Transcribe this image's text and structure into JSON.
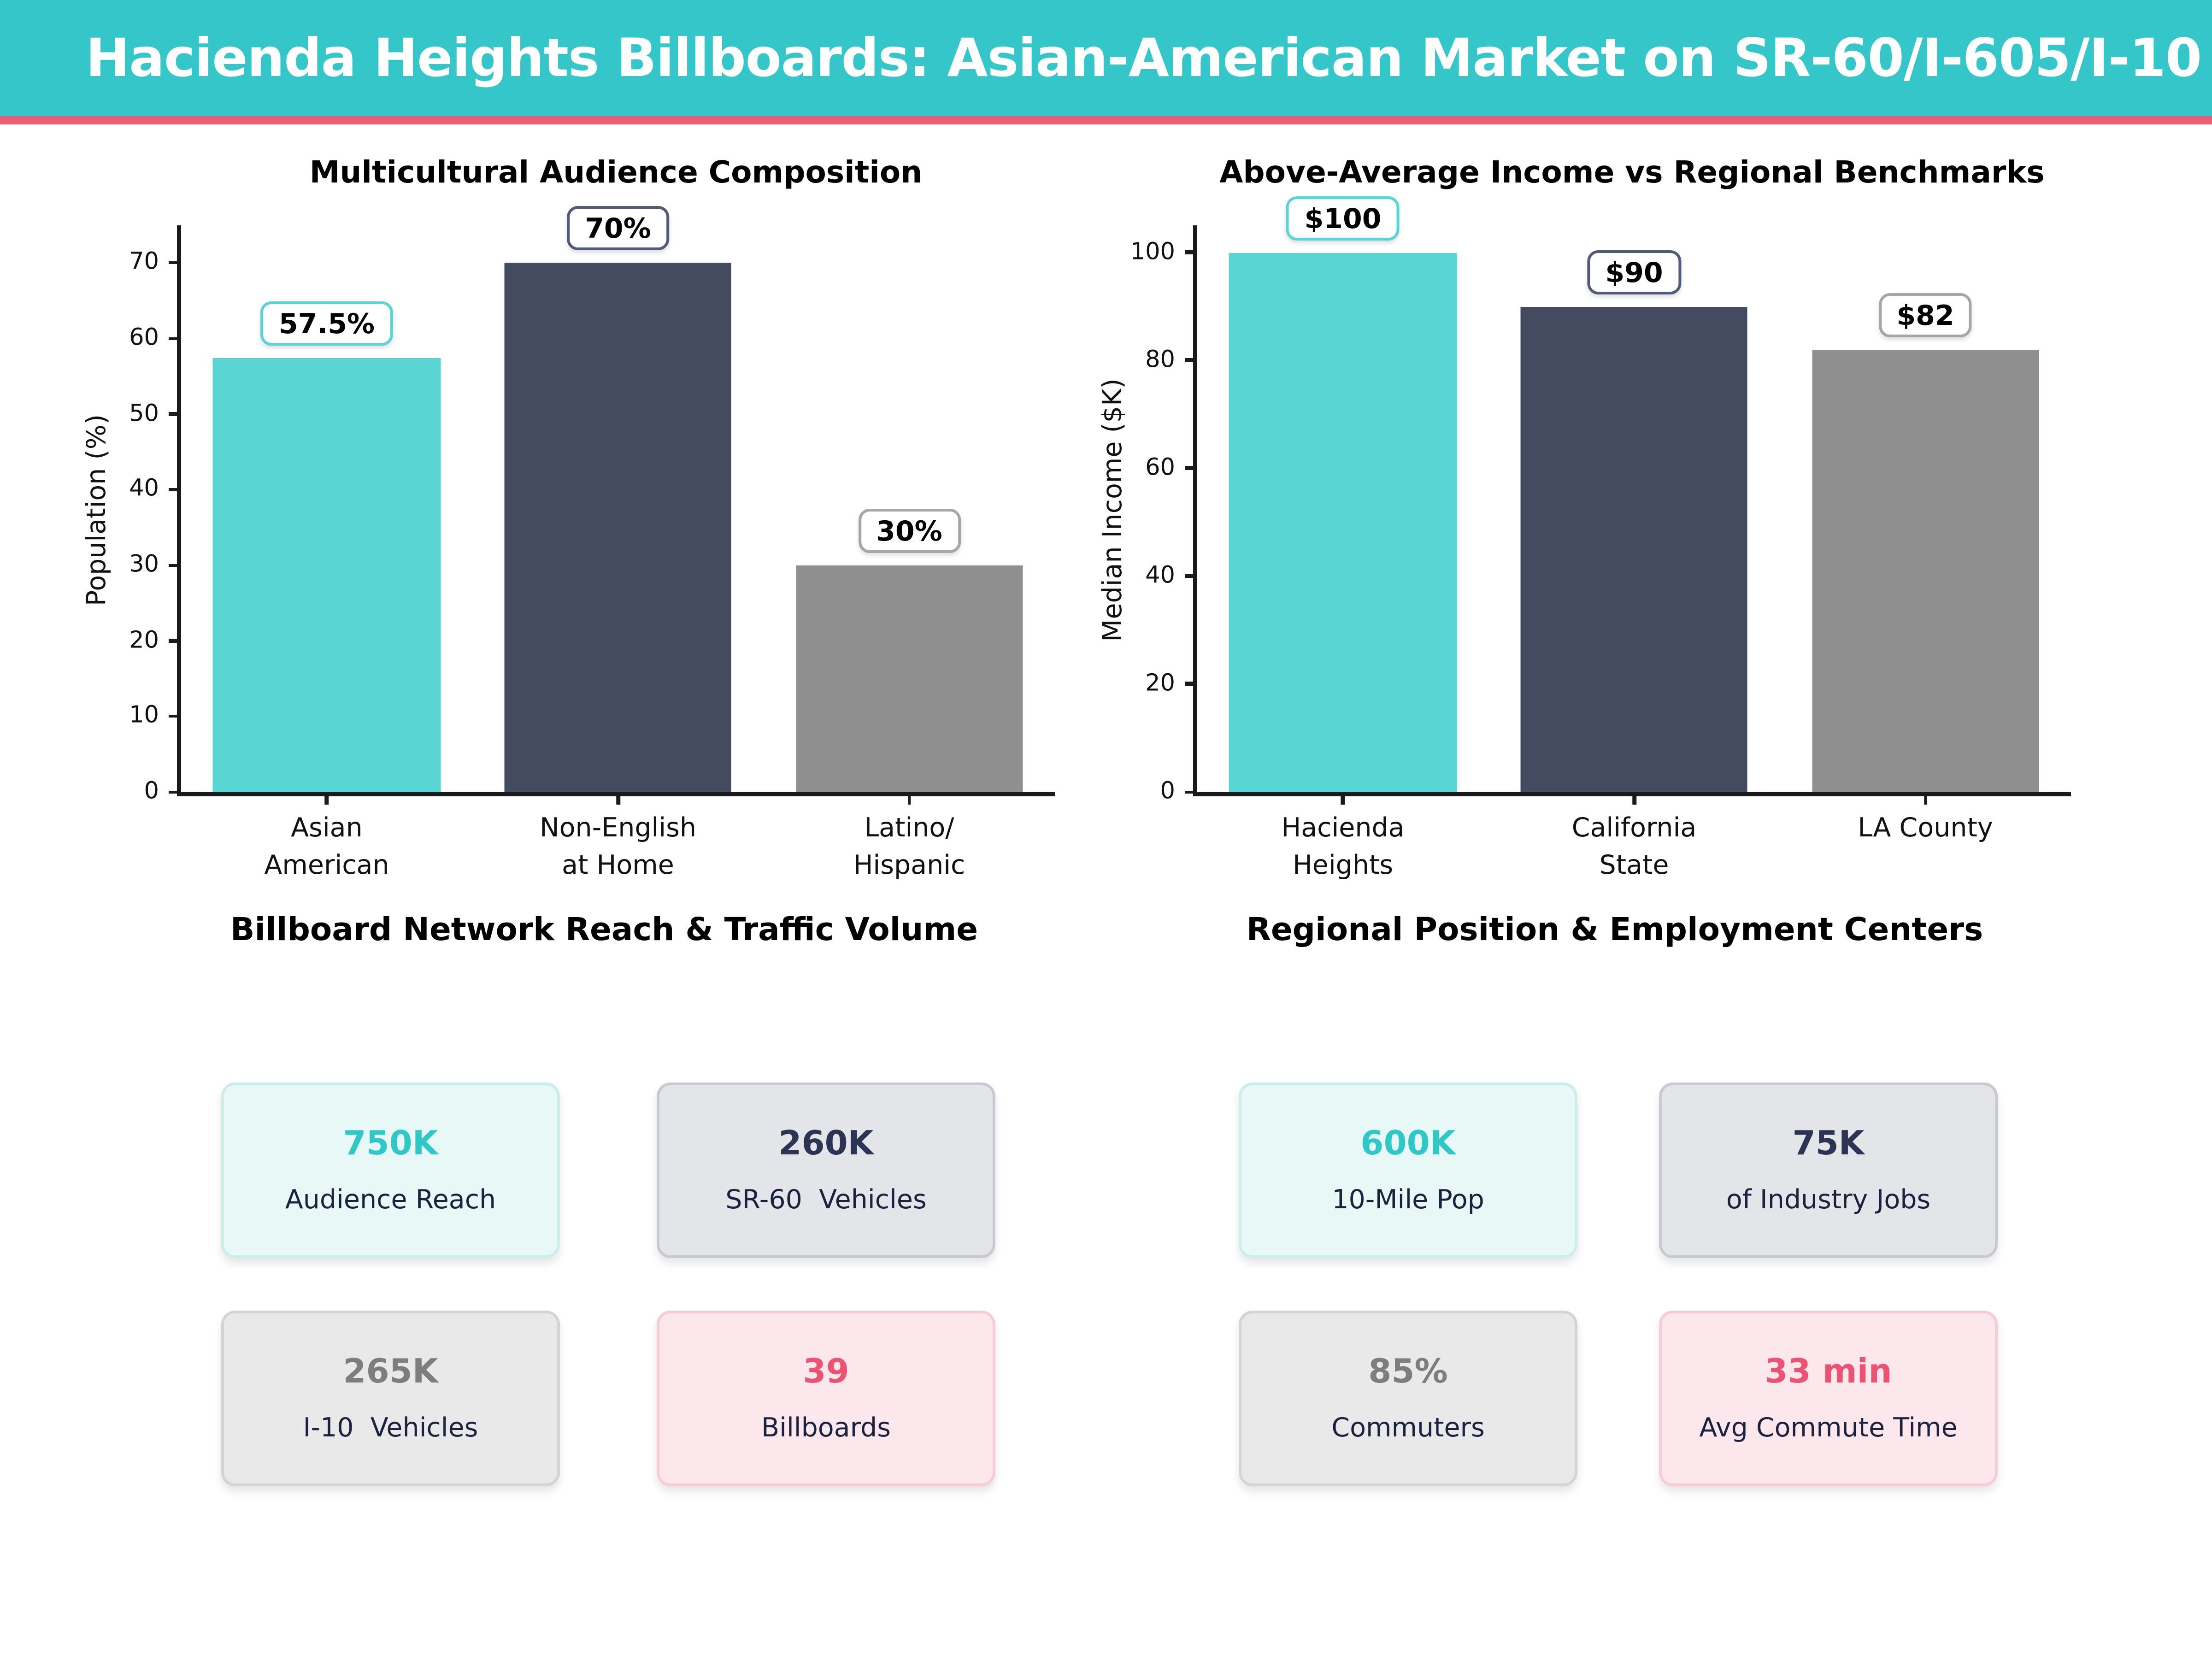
{
  "header": {
    "title": "Hacienda Heights Billboards: Asian-American Market on SR-60/I-605/I-10",
    "bg_color": "#35c6ca",
    "accent_color": "#ed5b76"
  },
  "chart_data": [
    {
      "type": "bar",
      "title": "Multicultural Audience Composition",
      "categories": [
        "Asian\nAmerican",
        "Non-English\nat Home",
        "Latino/\nHispanic"
      ],
      "values": [
        57.5,
        70,
        30
      ],
      "labels": [
        "57.5%",
        "70%",
        "30%"
      ],
      "xlabel": "",
      "ylabel": "Population (%)",
      "yticks": [
        0,
        10,
        20,
        30,
        40,
        50,
        60,
        70
      ],
      "ylim": [
        0,
        75
      ],
      "grid": "off",
      "legend": "none",
      "bar_colors": [
        "#59d6d4",
        "#444b61",
        "#8f8f8f"
      ],
      "box_colors": [
        "#59d6d4",
        "#515a78",
        "#a6a6a6"
      ]
    },
    {
      "type": "bar",
      "title": "Above-Average Income vs Regional Benchmarks",
      "categories": [
        "Hacienda\nHeights",
        "California\nState",
        "LA County"
      ],
      "values": [
        100,
        90,
        82
      ],
      "labels": [
        "$100",
        "$90",
        "$82"
      ],
      "xlabel": "",
      "ylabel": "Median Income ($K)",
      "yticks": [
        0,
        20,
        40,
        60,
        80,
        100
      ],
      "ylim": [
        0,
        105
      ],
      "grid": "off",
      "legend": "none",
      "bar_colors": [
        "#59d6d4",
        "#444b61",
        "#8f8f8f"
      ],
      "box_colors": [
        "#59d6d4",
        "#515a78",
        "#a6a6a6"
      ]
    }
  ],
  "sections": [
    {
      "title": "Billboard Network Reach & Traffic Volume",
      "cards": [
        {
          "value": "750K",
          "label": "Audience Reach",
          "theme": "mint"
        },
        {
          "value": "260K",
          "label": "SR-60  Vehicles",
          "theme": "navy"
        },
        {
          "value": "265K",
          "label": "I-10  Vehicles",
          "theme": "gray"
        },
        {
          "value": "39",
          "label": "Billboards",
          "theme": "pink"
        }
      ]
    },
    {
      "title": "Regional Position & Employment Centers",
      "cards": [
        {
          "value": "600K",
          "label": "10-Mile Pop",
          "theme": "mint"
        },
        {
          "value": "75K",
          "label": "of Industry Jobs",
          "theme": "navy"
        },
        {
          "value": "85%",
          "label": "Commuters",
          "theme": "gray"
        },
        {
          "value": "33 min",
          "label": "Avg Commute Time",
          "theme": "pink"
        }
      ]
    }
  ]
}
